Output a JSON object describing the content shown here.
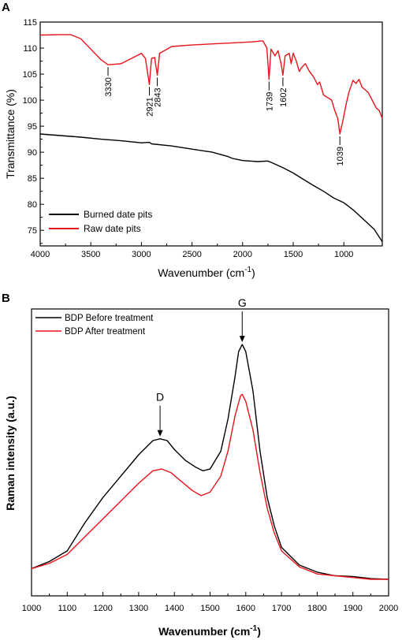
{
  "chart_data": [
    {
      "panel": "A",
      "type": "line",
      "xlabel": "Wavenumber (cm",
      "xlabel_sup": "-1",
      "xlabel_end": ")",
      "ylabel": "Transmittance (%)",
      "xlim": [
        4000,
        620
      ],
      "ylim": [
        72,
        115
      ],
      "x_ticks": [
        4000,
        3500,
        3000,
        2500,
        2000,
        1500,
        1000
      ],
      "y_ticks": [
        75,
        80,
        85,
        90,
        95,
        100,
        105,
        110,
        115
      ],
      "legend_position": "bottom-left",
      "series": [
        {
          "name": "Burned date pits",
          "color": "#000000",
          "points": [
            [
              4000,
              93.5
            ],
            [
              3800,
              93.2
            ],
            [
              3600,
              92.9
            ],
            [
              3400,
              92.5
            ],
            [
              3200,
              92.2
            ],
            [
              3000,
              91.8
            ],
            [
              2920,
              91.9
            ],
            [
              2900,
              91.6
            ],
            [
              2700,
              91.2
            ],
            [
              2500,
              90.6
            ],
            [
              2300,
              90.0
            ],
            [
              2150,
              89.2
            ],
            [
              2100,
              88.8
            ],
            [
              2000,
              88.4
            ],
            [
              1850,
              88.2
            ],
            [
              1750,
              88.3
            ],
            [
              1700,
              87.9
            ],
            [
              1600,
              87.0
            ],
            [
              1500,
              86.0
            ],
            [
              1400,
              84.8
            ],
            [
              1300,
              83.6
            ],
            [
              1200,
              82.5
            ],
            [
              1100,
              81.2
            ],
            [
              1000,
              80.3
            ],
            [
              900,
              78.8
            ],
            [
              800,
              77.0
            ],
            [
              700,
              75.2
            ],
            [
              620,
              72.8
            ]
          ]
        },
        {
          "name": "Raw date pits",
          "color": "#e8141b",
          "points": [
            [
              4000,
              112.5
            ],
            [
              3800,
              112.6
            ],
            [
              3700,
              112.6
            ],
            [
              3600,
              111.8
            ],
            [
              3500,
              109.8
            ],
            [
              3400,
              107.8
            ],
            [
              3330,
              106.8
            ],
            [
              3200,
              107.0
            ],
            [
              3100,
              108.0
            ],
            [
              3000,
              109.0
            ],
            [
              2960,
              108.0
            ],
            [
              2921,
              103.0
            ],
            [
              2900,
              108.0
            ],
            [
              2870,
              108.2
            ],
            [
              2843,
              104.8
            ],
            [
              2820,
              109.0
            ],
            [
              2700,
              110.3
            ],
            [
              2500,
              110.6
            ],
            [
              2300,
              110.8
            ],
            [
              2100,
              111.0
            ],
            [
              1900,
              111.2
            ],
            [
              1800,
              111.4
            ],
            [
              1760,
              110.0
            ],
            [
              1739,
              104.0
            ],
            [
              1720,
              109.8
            ],
            [
              1680,
              108.5
            ],
            [
              1650,
              109.5
            ],
            [
              1620,
              107.0
            ],
            [
              1602,
              104.8
            ],
            [
              1580,
              108.5
            ],
            [
              1540,
              109.0
            ],
            [
              1520,
              107.0
            ],
            [
              1500,
              109.0
            ],
            [
              1470,
              107.5
            ],
            [
              1440,
              105.5
            ],
            [
              1420,
              106.2
            ],
            [
              1380,
              107.0
            ],
            [
              1340,
              105.5
            ],
            [
              1300,
              104.5
            ],
            [
              1260,
              103.0
            ],
            [
              1240,
              103.5
            ],
            [
              1200,
              101.0
            ],
            [
              1160,
              100.5
            ],
            [
              1120,
              100.0
            ],
            [
              1090,
              98.0
            ],
            [
              1060,
              96.5
            ],
            [
              1039,
              93.5
            ],
            [
              1010,
              96.0
            ],
            [
              980,
              99.0
            ],
            [
              950,
              101.5
            ],
            [
              910,
              103.8
            ],
            [
              880,
              103.2
            ],
            [
              850,
              104.0
            ],
            [
              820,
              102.5
            ],
            [
              790,
              102.0
            ],
            [
              760,
              101.5
            ],
            [
              720,
              100.0
            ],
            [
              680,
              98.5
            ],
            [
              650,
              98.0
            ],
            [
              620,
              96.5
            ]
          ]
        }
      ],
      "annotations": [
        {
          "label": "3330",
          "x": 3330,
          "y": 106.8
        },
        {
          "label": "2921",
          "x": 2921,
          "y": 103.0
        },
        {
          "label": "2843",
          "x": 2843,
          "y": 104.8
        },
        {
          "label": "1739",
          "x": 1739,
          "y": 104.0
        },
        {
          "label": "1602",
          "x": 1602,
          "y": 104.8
        },
        {
          "label": "1039",
          "x": 1039,
          "y": 93.5
        }
      ]
    },
    {
      "panel": "B",
      "type": "line",
      "xlabel": "Wavenumber (cm",
      "xlabel_sup": "-1",
      "xlabel_end": ")",
      "ylabel": "Raman intensity  (a.u.)",
      "xlim": [
        1000,
        2000
      ],
      "ylim": [
        0,
        1
      ],
      "x_ticks": [
        1000,
        1100,
        1200,
        1300,
        1400,
        1500,
        1600,
        1700,
        1800,
        1900,
        2000
      ],
      "legend_position": "top-left",
      "series": [
        {
          "name": "BDP Before treatment",
          "color": "#000000",
          "points": [
            [
              1000,
              0.05
            ],
            [
              1050,
              0.07
            ],
            [
              1100,
              0.1
            ],
            [
              1150,
              0.18
            ],
            [
              1200,
              0.25
            ],
            [
              1250,
              0.31
            ],
            [
              1300,
              0.37
            ],
            [
              1340,
              0.41
            ],
            [
              1360,
              0.415
            ],
            [
              1380,
              0.41
            ],
            [
              1400,
              0.385
            ],
            [
              1430,
              0.355
            ],
            [
              1460,
              0.335
            ],
            [
              1480,
              0.325
            ],
            [
              1500,
              0.33
            ],
            [
              1530,
              0.38
            ],
            [
              1550,
              0.47
            ],
            [
              1570,
              0.59
            ],
            [
              1580,
              0.66
            ],
            [
              1590,
              0.68
            ],
            [
              1600,
              0.66
            ],
            [
              1620,
              0.55
            ],
            [
              1640,
              0.38
            ],
            [
              1660,
              0.25
            ],
            [
              1680,
              0.17
            ],
            [
              1700,
              0.11
            ],
            [
              1750,
              0.06
            ],
            [
              1800,
              0.04
            ],
            [
              1850,
              0.03
            ],
            [
              1900,
              0.028
            ],
            [
              1950,
              0.022
            ],
            [
              2000,
              0.02
            ]
          ]
        },
        {
          "name": "BDP After treatment",
          "color": "#e8141b",
          "points": [
            [
              1000,
              0.05
            ],
            [
              1050,
              0.065
            ],
            [
              1100,
              0.09
            ],
            [
              1150,
              0.14
            ],
            [
              1200,
              0.19
            ],
            [
              1250,
              0.24
            ],
            [
              1300,
              0.29
            ],
            [
              1340,
              0.325
            ],
            [
              1365,
              0.33
            ],
            [
              1390,
              0.32
            ],
            [
              1420,
              0.295
            ],
            [
              1450,
              0.27
            ],
            [
              1475,
              0.255
            ],
            [
              1500,
              0.265
            ],
            [
              1530,
              0.31
            ],
            [
              1550,
              0.38
            ],
            [
              1570,
              0.48
            ],
            [
              1585,
              0.535
            ],
            [
              1590,
              0.54
            ],
            [
              1600,
              0.52
            ],
            [
              1620,
              0.44
            ],
            [
              1640,
              0.32
            ],
            [
              1660,
              0.22
            ],
            [
              1680,
              0.15
            ],
            [
              1700,
              0.1
            ],
            [
              1750,
              0.055
            ],
            [
              1800,
              0.035
            ],
            [
              1850,
              0.03
            ],
            [
              1900,
              0.025
            ],
            [
              1950,
              0.02
            ],
            [
              2000,
              0.02
            ]
          ]
        }
      ],
      "annotations": [
        {
          "label": "D",
          "x": 1360,
          "y": 0.415
        },
        {
          "label": "G",
          "x": 1590,
          "y": 0.68
        }
      ]
    }
  ]
}
